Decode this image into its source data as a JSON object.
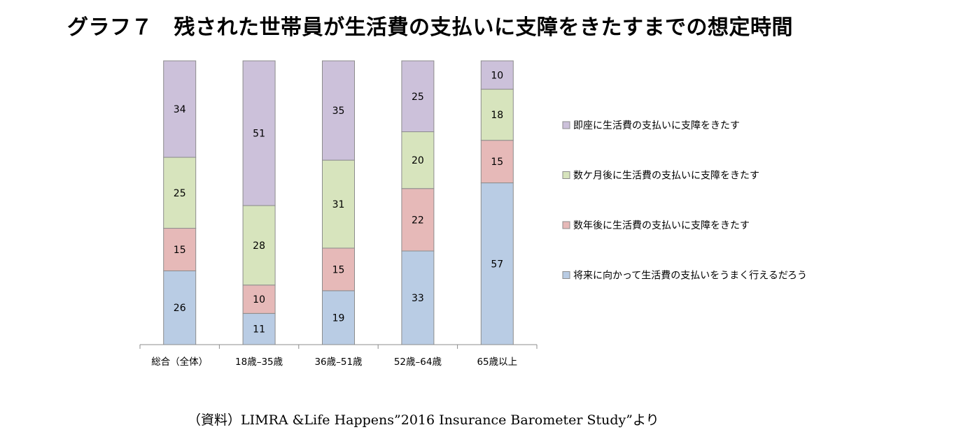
{
  "title": "グラフ７　残された世帯員が生活費の支払いに支障をきたすまでの想定時間",
  "source": "（資料）LIMRA &Life Happens”2016 Insurance Barometer Study”より",
  "chart_data": {
    "type": "bar",
    "stacked": true,
    "categories": [
      "総合（全体）",
      "18歳–35歳",
      "36歳–51歳",
      "52歳–64歳",
      "65歳以上"
    ],
    "series": [
      {
        "name": "将来に向かって生活費の支払いをうまく行えるだろう",
        "color": "#b9cce4",
        "values": [
          26,
          11,
          19,
          33,
          57
        ]
      },
      {
        "name": "数年後に生活費の支払いに支障をきたす",
        "color": "#e6b9b8",
        "values": [
          15,
          10,
          15,
          22,
          15
        ]
      },
      {
        "name": "数ケ月後に生活費の支払いに支障をきたす",
        "color": "#d7e4bd",
        "values": [
          25,
          28,
          31,
          20,
          18
        ]
      },
      {
        "name": "即座に生活費の支払いに支障をきたす",
        "color": "#ccc1da",
        "values": [
          34,
          51,
          35,
          25,
          10
        ]
      }
    ],
    "legend_order": [
      3,
      2,
      1,
      0
    ],
    "legend_position": "right",
    "ylim": [
      0,
      100
    ],
    "grid": false,
    "data_labels": true
  }
}
